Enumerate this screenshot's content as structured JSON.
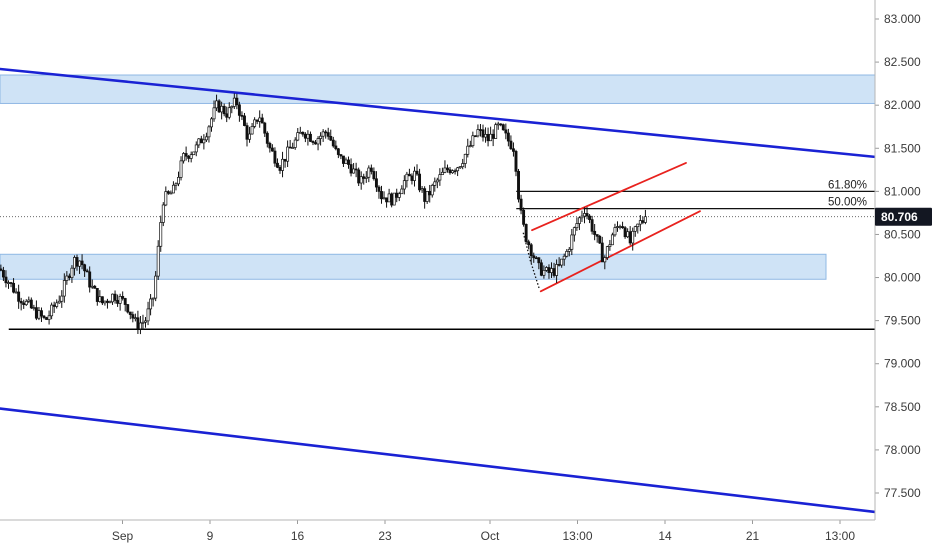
{
  "chart_data": {
    "type": "candlestick",
    "title": "",
    "xlabel": "",
    "ylabel": "",
    "ylim": [
      77.2,
      83.2
    ],
    "y_ticks": [
      "83.000",
      "82.500",
      "82.000",
      "81.500",
      "81.000",
      "80.500",
      "80.000",
      "79.500",
      "79.000",
      "78.500",
      "78.000",
      "77.500"
    ],
    "x_ticks": [
      {
        "label": "Sep",
        "t": 7
      },
      {
        "label": "9",
        "t": 12
      },
      {
        "label": "16",
        "t": 17
      },
      {
        "label": "23",
        "t": 22
      },
      {
        "label": "Oct",
        "t": 28
      },
      {
        "label": "13:00",
        "t": 33
      },
      {
        "label": "14",
        "t": 38
      },
      {
        "label": "21",
        "t": 43
      },
      {
        "label": "13:00",
        "t": 48
      }
    ],
    "t_range": [
      0,
      50
    ],
    "current_price": "80.706",
    "current_price_value": 80.706,
    "anchors": [
      [
        0,
        80.1
      ],
      [
        1,
        79.8
      ],
      [
        2,
        79.6
      ],
      [
        2.6,
        79.5
      ],
      [
        3.5,
        79.8
      ],
      [
        4.2,
        80.2
      ],
      [
        4.6,
        80.2
      ],
      [
        5.2,
        79.9
      ],
      [
        5.8,
        79.7
      ],
      [
        6.5,
        79.8
      ],
      [
        7.2,
        79.7
      ],
      [
        7.8,
        79.45
      ],
      [
        8.3,
        79.5
      ],
      [
        8.8,
        79.8
      ],
      [
        9.3,
        80.9
      ],
      [
        9.9,
        81.0
      ],
      [
        10.5,
        81.4
      ],
      [
        11.2,
        81.5
      ],
      [
        11.8,
        81.7
      ],
      [
        12.4,
        82.0
      ],
      [
        13.0,
        81.9
      ],
      [
        13.5,
        82.05
      ],
      [
        14.2,
        81.6
      ],
      [
        14.8,
        81.9
      ],
      [
        15.4,
        81.5
      ],
      [
        16.0,
        81.3
      ],
      [
        16.6,
        81.5
      ],
      [
        17.3,
        81.7
      ],
      [
        18.0,
        81.6
      ],
      [
        18.7,
        81.7
      ],
      [
        19.3,
        81.4
      ],
      [
        20.0,
        81.3
      ],
      [
        20.6,
        81.1
      ],
      [
        21.2,
        81.3
      ],
      [
        21.8,
        80.95
      ],
      [
        22.5,
        80.9
      ],
      [
        23.0,
        81.1
      ],
      [
        23.7,
        81.2
      ],
      [
        24.3,
        80.9
      ],
      [
        24.9,
        81.1
      ],
      [
        25.5,
        81.25
      ],
      [
        26.2,
        81.3
      ],
      [
        26.8,
        81.5
      ],
      [
        27.3,
        81.7
      ],
      [
        27.9,
        81.6
      ],
      [
        28.5,
        81.75
      ],
      [
        29.0,
        81.6
      ],
      [
        29.4,
        81.5
      ],
      [
        29.7,
        80.8
      ],
      [
        30.0,
        80.5
      ],
      [
        30.4,
        80.3
      ],
      [
        30.8,
        80.1
      ],
      [
        31.3,
        80.05
      ],
      [
        31.9,
        80.1
      ],
      [
        32.4,
        80.3
      ],
      [
        32.9,
        80.6
      ],
      [
        33.4,
        80.8
      ],
      [
        33.9,
        80.55
      ],
      [
        34.5,
        80.2
      ],
      [
        35.0,
        80.5
      ],
      [
        35.5,
        80.65
      ],
      [
        36.0,
        80.4
      ],
      [
        36.5,
        80.62
      ],
      [
        37.0,
        80.706
      ]
    ],
    "zones": [
      {
        "from": 82.35,
        "to": 82.02,
        "t_start": 0,
        "t_end": 50
      },
      {
        "from": 80.27,
        "to": 79.98,
        "t_start": 0,
        "t_end": 47.2
      }
    ],
    "horizontal_lines": [
      {
        "value": 79.4,
        "t_start": 0.5,
        "t_end": 50,
        "color": "#000000"
      }
    ],
    "trendlines": [
      {
        "t1": 0,
        "v1": 82.42,
        "t2": 50,
        "v2": 81.4,
        "color": "#1a22d4"
      },
      {
        "t1": 0,
        "v1": 78.48,
        "t2": 50,
        "v2": 77.28,
        "color": "#1a22d4"
      },
      {
        "t1": 30.4,
        "v1": 80.55,
        "t2": 39.2,
        "v2": 81.33,
        "color": "#e8221e"
      },
      {
        "t1": 30.9,
        "v1": 79.84,
        "t2": 40.0,
        "v2": 80.77,
        "color": "#e8221e"
      }
    ],
    "fib_levels": [
      {
        "label": "61.80%",
        "value": 81.0,
        "t_start": 29.5,
        "t_end": 50
      },
      {
        "label": "50.00%",
        "value": 80.8,
        "t_start": 29.5,
        "t_end": 50
      }
    ],
    "dotted_path": [
      [
        29.9,
        80.52
      ],
      [
        30.3,
        80.2
      ],
      [
        30.8,
        79.88
      ]
    ]
  }
}
